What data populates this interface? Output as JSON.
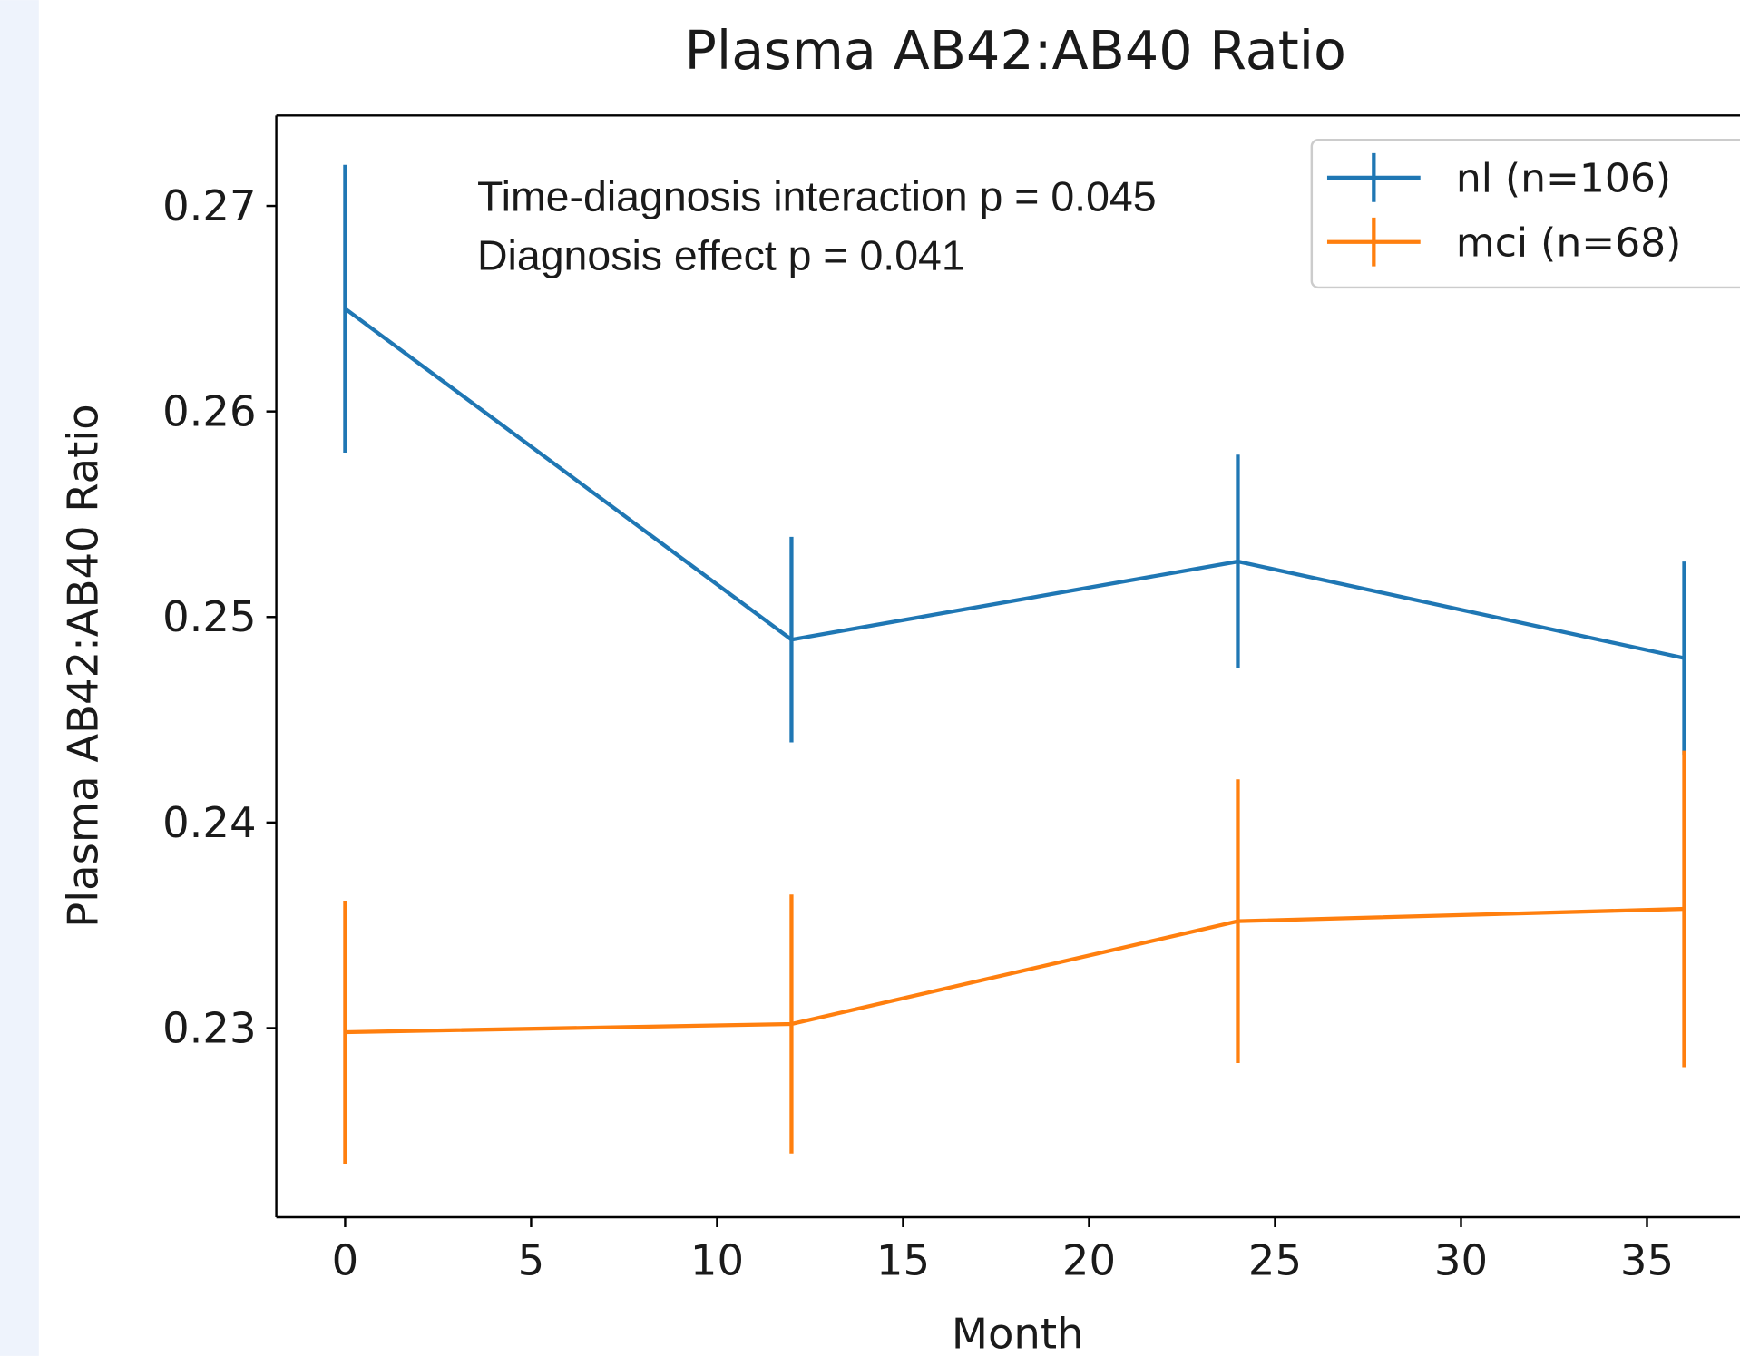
{
  "chart_data": {
    "type": "errorbar-line",
    "title": "Plasma AB42:AB40 Ratio",
    "x_label": "Month",
    "y_label": "Plasma AB42:AB40 Ratio",
    "annotations": [
      "Time-diagnosis interaction p = 0.045",
      "Diagnosis effect p = 0.041"
    ],
    "x": [
      0,
      12,
      24,
      36
    ],
    "series": [
      {
        "name": "nl (n=106)",
        "color": "#1f77b4",
        "values": [
          0.265,
          0.2489,
          0.2527,
          0.248
        ],
        "errors": [
          0.007,
          0.005,
          0.0052,
          0.0047
        ]
      },
      {
        "name": "mci (n=68)",
        "color": "#ff7f0e",
        "values": [
          0.2298,
          0.2302,
          0.2352,
          0.2358
        ],
        "errors": [
          0.0064,
          0.0063,
          0.0069,
          0.0077
        ]
      }
    ],
    "xlim": [
      -1.85,
      37.5
    ],
    "xticks": [
      0,
      5,
      10,
      15,
      20,
      25,
      30,
      35
    ],
    "ylim": [
      0.2208,
      0.2744
    ],
    "yticks": [
      0.23,
      0.24,
      0.25,
      0.26,
      0.27
    ],
    "legend": "upper right"
  }
}
